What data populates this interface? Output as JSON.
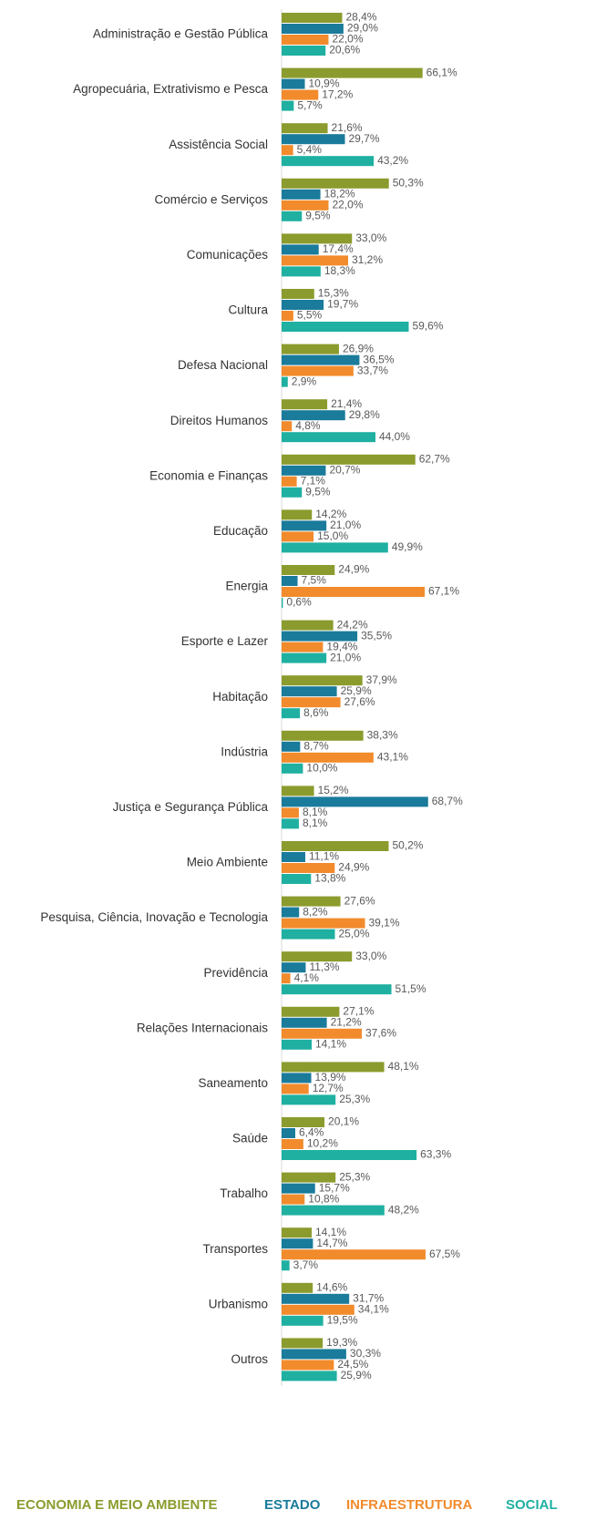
{
  "chart_data": {
    "type": "hbar",
    "categories": [
      "Administração e Gestão Pública",
      "Agropecuária, Extrativismo e Pesca",
      "Assistência Social",
      "Comércio e Serviços",
      "Comunicações",
      "Cultura",
      "Defesa Nacional",
      "Direitos Humanos",
      "Economia e Finanças",
      "Educação",
      "Energia",
      "Esporte e Lazer",
      "Habitação",
      "Indústria",
      "Justiça e Segurança Pública",
      "Meio Ambiente",
      "Pesquisa, Ciência, Inovação e Tecnologia",
      "Previdência",
      "Relações Internacionais",
      "Saneamento",
      "Saúde",
      "Trabalho",
      "Transportes",
      "Urbanismo",
      "Outros"
    ],
    "series": [
      {
        "name": "ECONOMIA E MEIO AMBIENTE",
        "color": "#8c9b2d",
        "values": [
          28.4,
          66.1,
          21.6,
          50.3,
          33.0,
          15.3,
          26.9,
          21.4,
          62.7,
          14.2,
          24.9,
          24.2,
          37.9,
          38.3,
          15.2,
          50.2,
          27.6,
          33.0,
          27.1,
          48.1,
          20.1,
          25.3,
          14.1,
          14.6,
          19.3
        ],
        "value_labels": [
          "28,4%",
          "66,1%",
          "21,6%",
          "50,3%",
          "33,0%",
          "15,3%",
          "26,9%",
          "21,4%",
          "62,7%",
          "14,2%",
          "24,9%",
          "24,2%",
          "37,9%",
          "38,3%",
          "15,2%",
          "50,2%",
          "27,6%",
          "33,0%",
          "27,1%",
          "48,1%",
          "20,1%",
          "25,3%",
          "14,1%",
          "14,6%",
          "19,3%"
        ]
      },
      {
        "name": "ESTADO",
        "color": "#1a7b9b",
        "values": [
          29.0,
          10.9,
          29.7,
          18.2,
          17.4,
          19.7,
          36.5,
          29.8,
          20.7,
          21.0,
          7.5,
          35.5,
          25.9,
          8.7,
          68.7,
          11.1,
          8.2,
          11.3,
          21.2,
          13.9,
          6.4,
          15.7,
          14.7,
          31.7,
          30.3
        ],
        "value_labels": [
          "29,0%",
          "10,9%",
          "29,7%",
          "18,2%",
          "17,4%",
          "19,7%",
          "36,5%",
          "29,8%",
          "20,7%",
          "21,0%",
          "7,5%",
          "35,5%",
          "25,9%",
          "8,7%",
          "68,7%",
          "11,1%",
          "8,2%",
          "11,3%",
          "21,2%",
          "13,9%",
          "6,4%",
          "15,7%",
          "14,7%",
          "31,7%",
          "30,3%"
        ]
      },
      {
        "name": "INFRAESTRUTURA",
        "color": "#f28b2c",
        "values": [
          22.0,
          17.2,
          5.4,
          22.0,
          31.2,
          5.5,
          33.7,
          4.8,
          7.1,
          15.0,
          67.1,
          19.4,
          27.6,
          43.1,
          8.1,
          24.9,
          39.1,
          4.1,
          37.6,
          12.7,
          10.2,
          10.8,
          67.5,
          34.1,
          24.5
        ],
        "value_labels": [
          "22,0%",
          "17,2%",
          "5,4%",
          "22,0%",
          "31,2%",
          "5,5%",
          "33,7%",
          "4,8%",
          "7,1%",
          "15,0%",
          "67,1%",
          "19,4%",
          "27,6%",
          "43,1%",
          "8,1%",
          "24,9%",
          "39,1%",
          "4,1%",
          "37,6%",
          "12,7%",
          "10,2%",
          "10,8%",
          "67,5%",
          "34,1%",
          "24,5%"
        ]
      },
      {
        "name": "SOCIAL",
        "color": "#1fb0a1",
        "values": [
          20.6,
          5.7,
          43.2,
          9.5,
          18.3,
          59.6,
          2.9,
          44.0,
          9.5,
          49.9,
          0.6,
          21.0,
          8.6,
          10.0,
          8.1,
          13.8,
          25.0,
          51.5,
          14.1,
          25.3,
          63.3,
          48.2,
          3.7,
          19.5,
          25.9
        ],
        "value_labels": [
          "20,6%",
          "5,7%",
          "43,2%",
          "9,5%",
          "18,3%",
          "59,6%",
          "2,9%",
          "44,0%",
          "9,5%",
          "49,9%",
          "0,6%",
          "21,0%",
          "8,6%",
          "10,0%",
          "8,1%",
          "13,8%",
          "25,0%",
          "51,5%",
          "14,1%",
          "25,3%",
          "63,3%",
          "48,2%",
          "3,7%",
          "19,5%",
          "25,9%"
        ]
      }
    ]
  }
}
